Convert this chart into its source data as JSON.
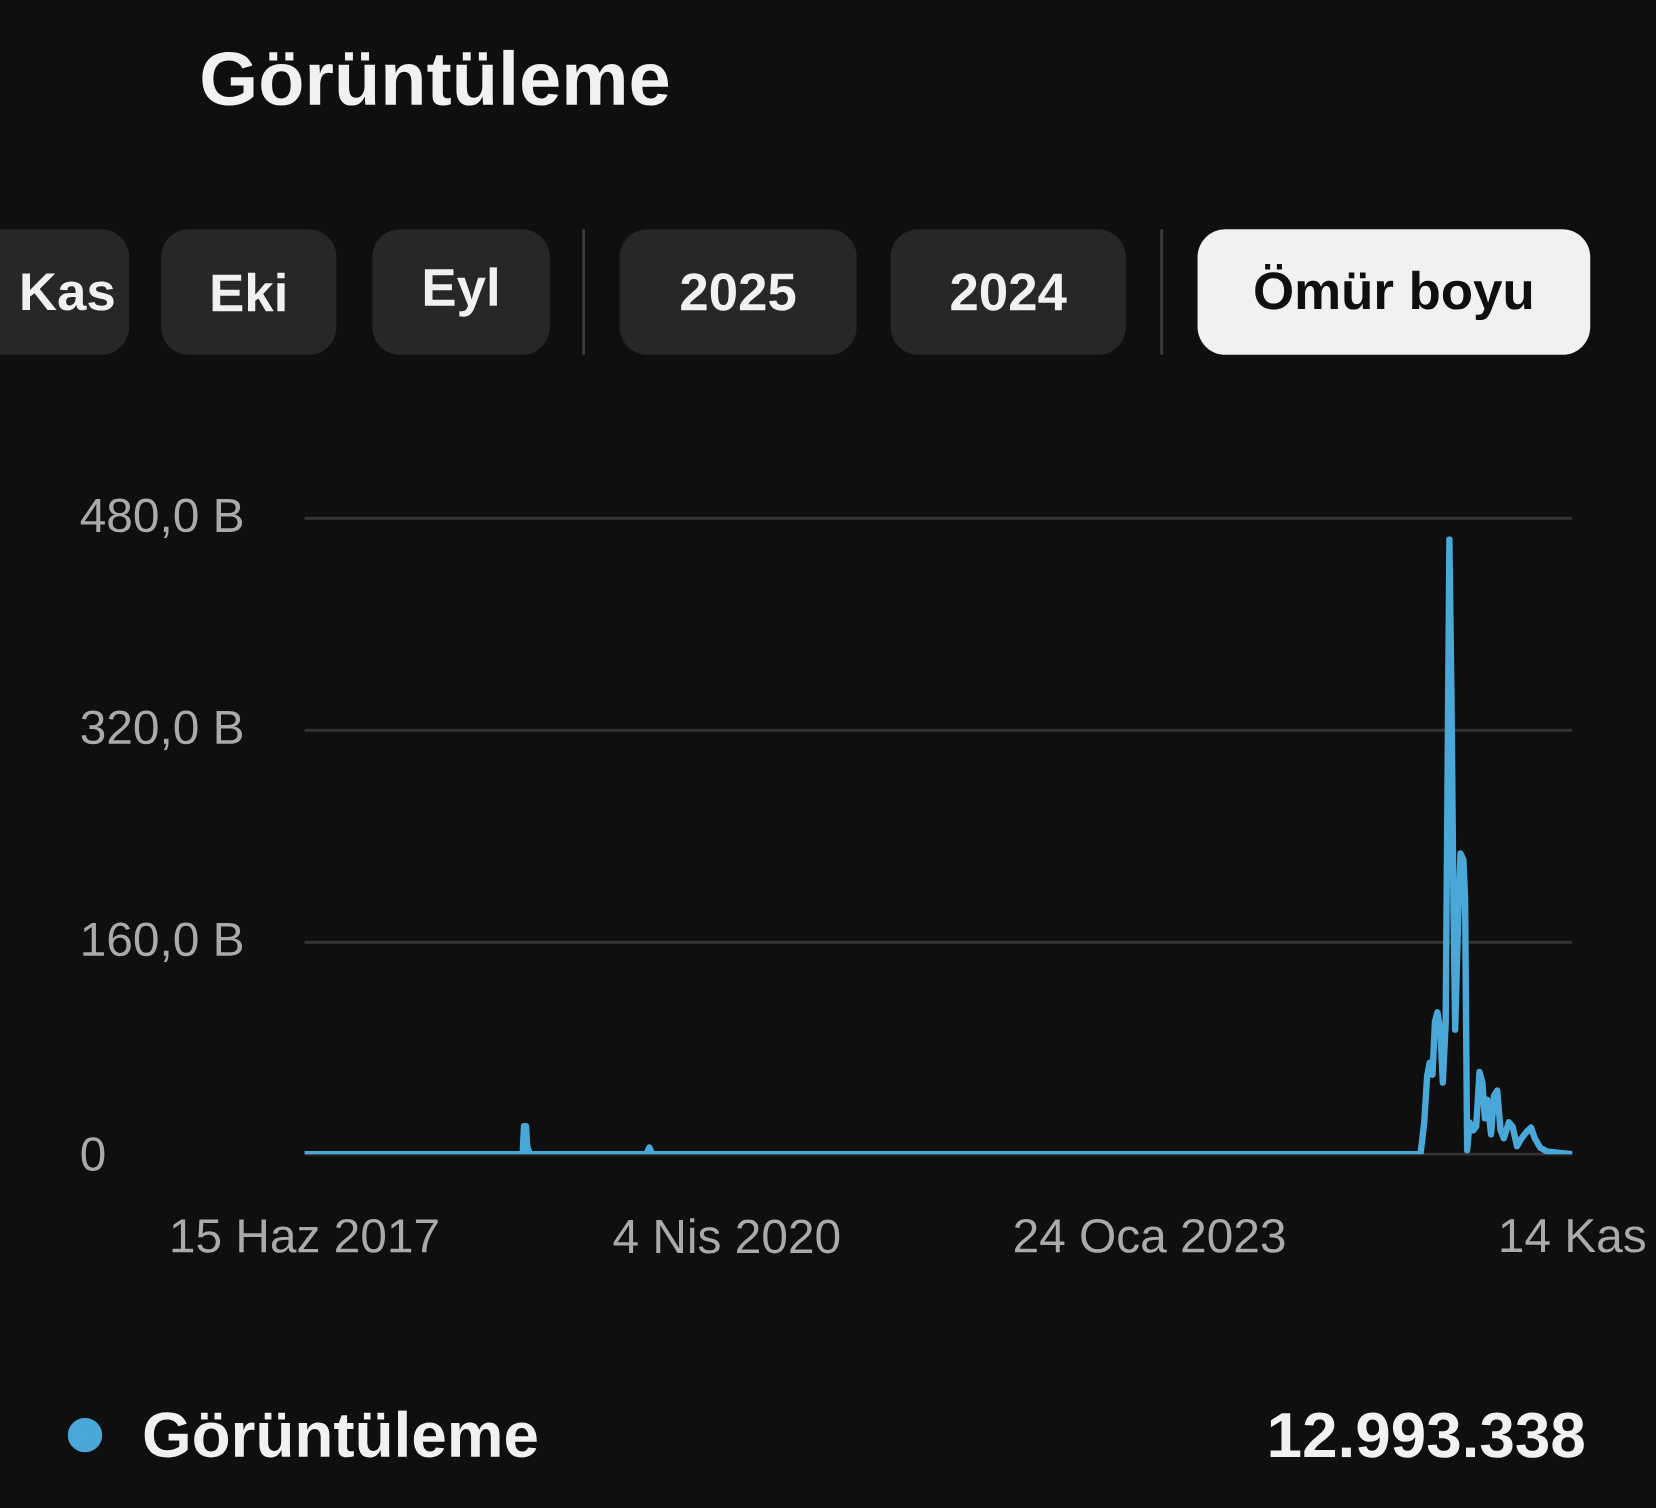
{
  "chart_data": {
    "type": "line",
    "title": "Görüntüleme",
    "annotations": [
      "Kas",
      "Eki",
      "Eyl",
      "2025",
      "2024",
      "Ömür boyu",
      "12.993.338"
    ],
    "x": [
      "2017-06-15",
      "2018-11-26",
      "2018-11-29",
      "2018-12-04",
      "2018-12-07",
      "2018-12-13",
      "2019-09-22",
      "2019-09-29",
      "2019-10-06",
      "2024-11-11",
      "2024-11-20",
      "2024-11-27",
      "2024-12-03",
      "2024-12-10",
      "2024-12-16",
      "2024-12-22",
      "2024-12-29",
      "2025-01-04",
      "2025-01-11",
      "2025-01-17",
      "2025-01-20",
      "2025-01-25",
      "2025-01-30",
      "2025-02-03",
      "2025-02-10",
      "2025-02-16",
      "2025-02-23",
      "2025-02-27",
      "2025-03-04",
      "2025-03-10",
      "2025-03-19",
      "2025-03-26",
      "2025-04-03",
      "2025-04-10",
      "2025-04-16",
      "2025-04-22",
      "2025-05-01",
      "2025-05-08",
      "2025-05-16",
      "2025-05-24",
      "2025-06-01",
      "2025-06-13",
      "2025-06-22",
      "2025-07-03",
      "2025-07-14",
      "2025-07-27",
      "2025-08-06",
      "2025-08-15",
      "2025-08-28",
      "2025-09-13",
      "2025-10-15",
      "2025-11-14"
    ],
    "series": [
      {
        "name": "Görüntüleme",
        "color": "#4aa8d8",
        "values": [
          0,
          0,
          21,
          21,
          6,
          0,
          0,
          5,
          0,
          0,
          24,
          59,
          69,
          60,
          100,
          107,
          93,
          54,
          99,
          345,
          464,
          345,
          184,
          94,
          175,
          227,
          222,
          194,
          3,
          24,
          18,
          21,
          62,
          54,
          27,
          41,
          15,
          44,
          48,
          18,
          12,
          24,
          21,
          6,
          12,
          17,
          20,
          12,
          5,
          2,
          1,
          0
        ]
      }
    ],
    "xlim": [
      "2017-06-15",
      "2025-11-14"
    ],
    "xticks": [
      {
        "value": "2017-06-15",
        "label": "15 Haz 2017"
      },
      {
        "value": "2020-04-04",
        "label": "4 Nis 2020"
      },
      {
        "value": "2023-01-24",
        "label": "24 Oca 2023"
      },
      {
        "value": "2025-11-14",
        "label": "14 Kas"
      }
    ],
    "ylim": [
      0,
      480
    ],
    "yticks": [
      0,
      {
        "value": 160,
        "label": "160,0 B"
      },
      {
        "value": 320,
        "label": "320,0 B"
      },
      {
        "value": 480,
        "label": "480,0 B"
      }
    ],
    "grid": "y",
    "legend": "bottom",
    "line_style": "solid"
  }
}
